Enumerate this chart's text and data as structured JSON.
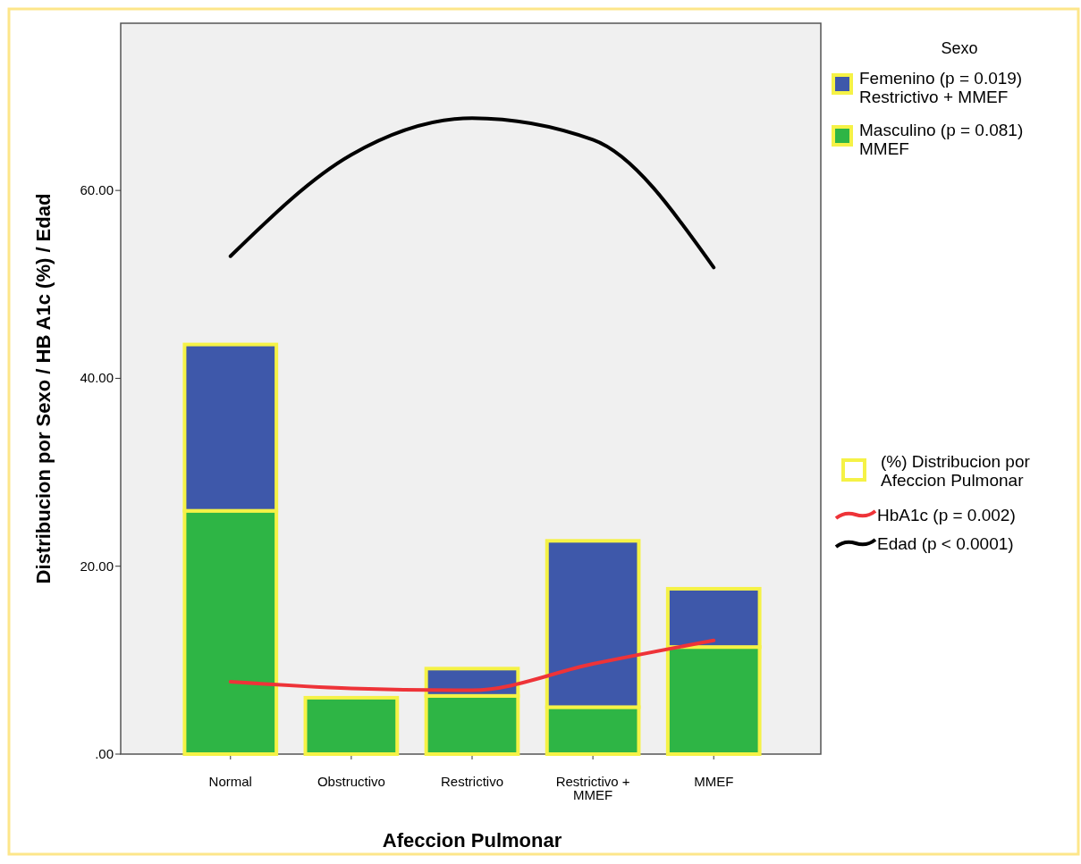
{
  "chart_data": {
    "type": "bar",
    "stacked": true,
    "xlabel": "Afeccion Pulmonar",
    "ylabel": "Distribucion por Sexo / HB A1c (%) / Edad",
    "legend_title": "Sexo",
    "legend": "right",
    "categories": [
      "Normal",
      "Obstructivo",
      "Restrictivo",
      "Restrictivo + MMEF",
      "MMEF"
    ],
    "ylim": [
      0,
      77.8
    ],
    "yticks": [
      {
        "value": 0,
        "label": ".00"
      },
      {
        "value": 20,
        "label": "20.00"
      },
      {
        "value": 40,
        "label": "40.00"
      },
      {
        "value": 60,
        "label": "60.00"
      }
    ],
    "series": [
      {
        "name": "Masculino (p = 0.081)\nMMEF",
        "color": "#2eb545",
        "values": [
          25.9,
          6.0,
          6.2,
          5.0,
          11.4
        ]
      },
      {
        "name": "Femenino (p = 0.019)\nRestrictivo + MMEF",
        "color": "#3e58aa",
        "values": [
          17.7,
          null,
          2.9,
          17.7,
          6.2
        ]
      },
      {
        "name": "HbA1c (p = 0.002)",
        "type": "line",
        "color": "#ee3338",
        "values": [
          7.7,
          7.0,
          6.8,
          9.6,
          12.1
        ]
      },
      {
        "name": "Edad (p < 0.0001)",
        "type": "line",
        "color": "#000000",
        "values": [
          53.0,
          63.8,
          67.7,
          65.4,
          51.8
        ]
      }
    ],
    "annotations": [
      "(%) Distribucion por\nAfeccion Pulmonar"
    ]
  }
}
